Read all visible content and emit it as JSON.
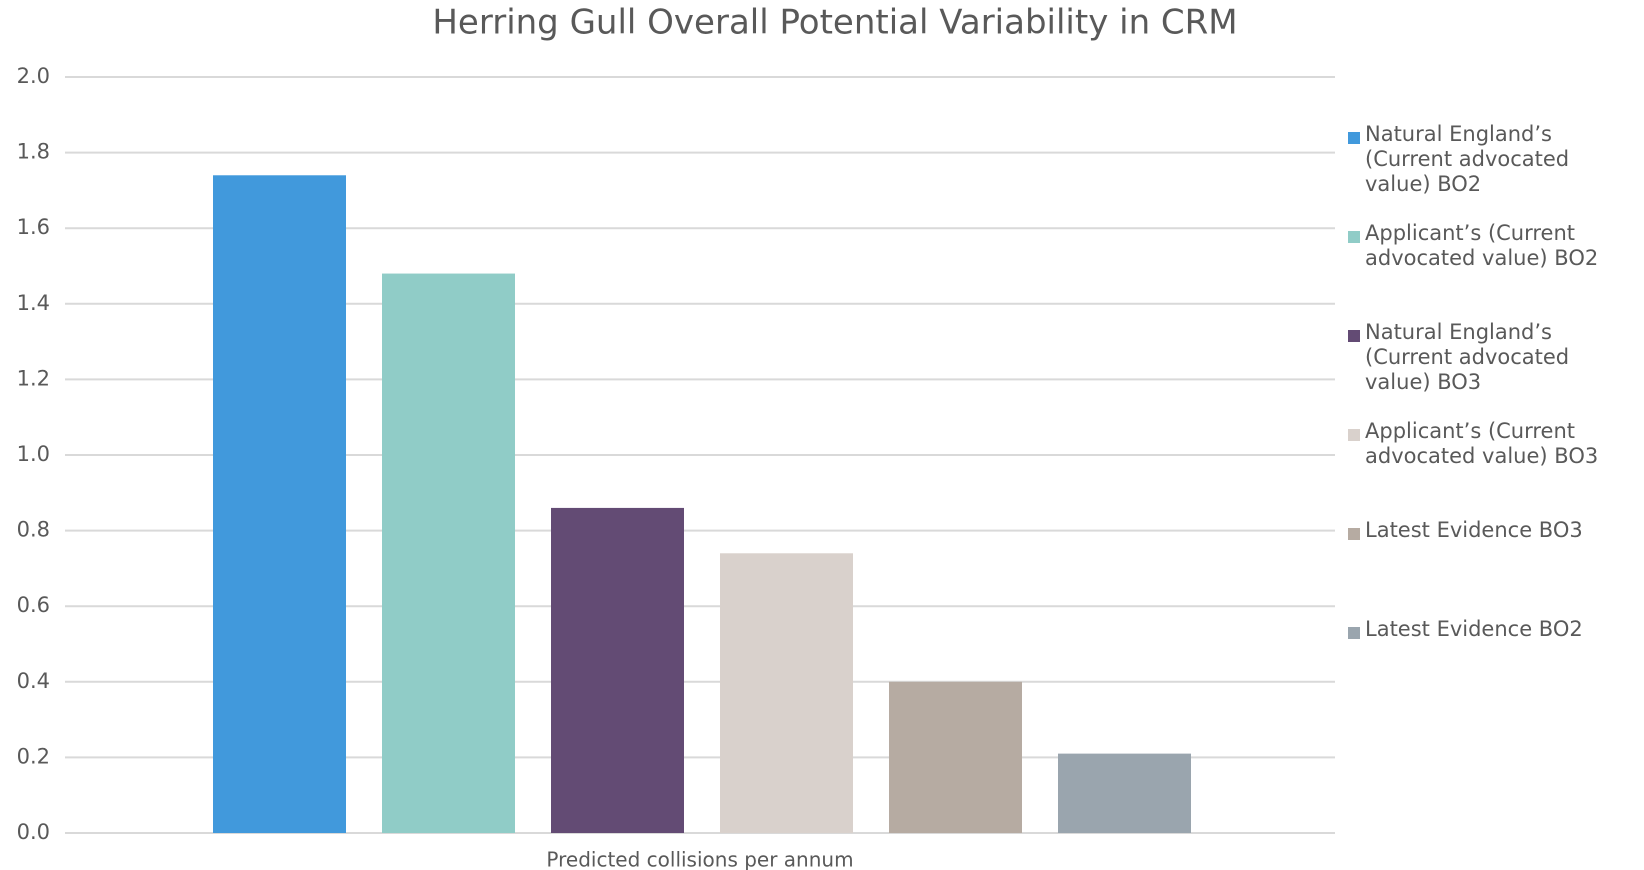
{
  "chart_data": {
    "type": "bar",
    "title": "Herring Gull Overall Potential  Variability in CRM",
    "categories": [
      "Predicted collisions per annum"
    ],
    "series": [
      {
        "name": "Natural England’s (Current advocated value) BO2",
        "color": "#4199dc",
        "values": [
          1.74
        ]
      },
      {
        "name": "Applicant’s (Current advocated value) BO2",
        "color": "#90ccc7",
        "values": [
          1.48
        ]
      },
      {
        "name": "Natural England’s (Current advocated value) BO3",
        "color": "#634b74",
        "values": [
          0.86
        ]
      },
      {
        "name": "Applicant’s (Current advocated value) BO3",
        "color": "#d9d1cc",
        "values": [
          0.74
        ]
      },
      {
        "name": "Latest Evidence BO3",
        "color": "#b6aba2",
        "values": [
          0.4
        ]
      },
      {
        "name": "Latest Evidence BO2",
        "color": "#9aa5ae",
        "values": [
          0.21
        ]
      }
    ],
    "ylim": [
      0,
      2
    ],
    "yticks": [
      {
        "value": 0,
        "label": "0.0"
      },
      0.2,
      0.4,
      0.6,
      0.8,
      {
        "value": 1,
        "label": "1.0"
      },
      1.2,
      1.4,
      1.6,
      1.8,
      {
        "value": 2,
        "label": "2.0"
      }
    ],
    "grid": true,
    "legend": "right"
  }
}
